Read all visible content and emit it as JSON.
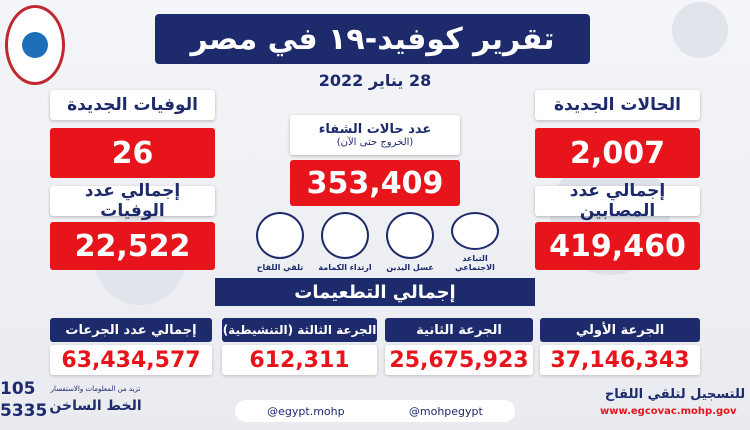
{
  "header": {
    "title": "تقرير كوفيد-١٩ في مصر",
    "date": "28 يناير 2022"
  },
  "new_cases": {
    "label": "الحالات الجديدة",
    "value": "2,007"
  },
  "total_cases": {
    "label": "إجمالي عدد المصابين",
    "value": "419,460"
  },
  "recoveries": {
    "label": "عدد حالات الشفاء",
    "sublabel": "(الخروج حتى الآن)",
    "value": "353,409"
  },
  "new_deaths": {
    "label": "الوفيات الجديدة",
    "value": "26"
  },
  "total_deaths": {
    "label": "إجمالي عدد الوفيات",
    "value": "22,522"
  },
  "precautions": [
    "التباعد الاجتماعي",
    "غسل اليدين",
    "ارتداء الكمامة",
    "تلقي اللقاح"
  ],
  "vaccinations": {
    "title": "إجمالي التطعيمات",
    "doses": [
      {
        "label": "الجرعة الأولي",
        "value": "37,146,343"
      },
      {
        "label": "الجرعة الثانية",
        "value": "25,675,923"
      },
      {
        "label": "الجرعة الثالثة (التنشيطية)",
        "value": "612,311"
      },
      {
        "label": "إجمالي عدد الجرعات",
        "value": "63,434,577"
      }
    ]
  },
  "footer": {
    "register": "للتسجيل لتلقي اللقاح",
    "url": "www.egcovac.mohp.gov",
    "social_1": "@mohpegypt",
    "social_2": "@egypt.mohp",
    "hotline_note": "تزيد من المعلومات والاستفسار",
    "hotline_label": "الخط الساخن",
    "hotline_1": "105",
    "hotline_2": "5335"
  }
}
